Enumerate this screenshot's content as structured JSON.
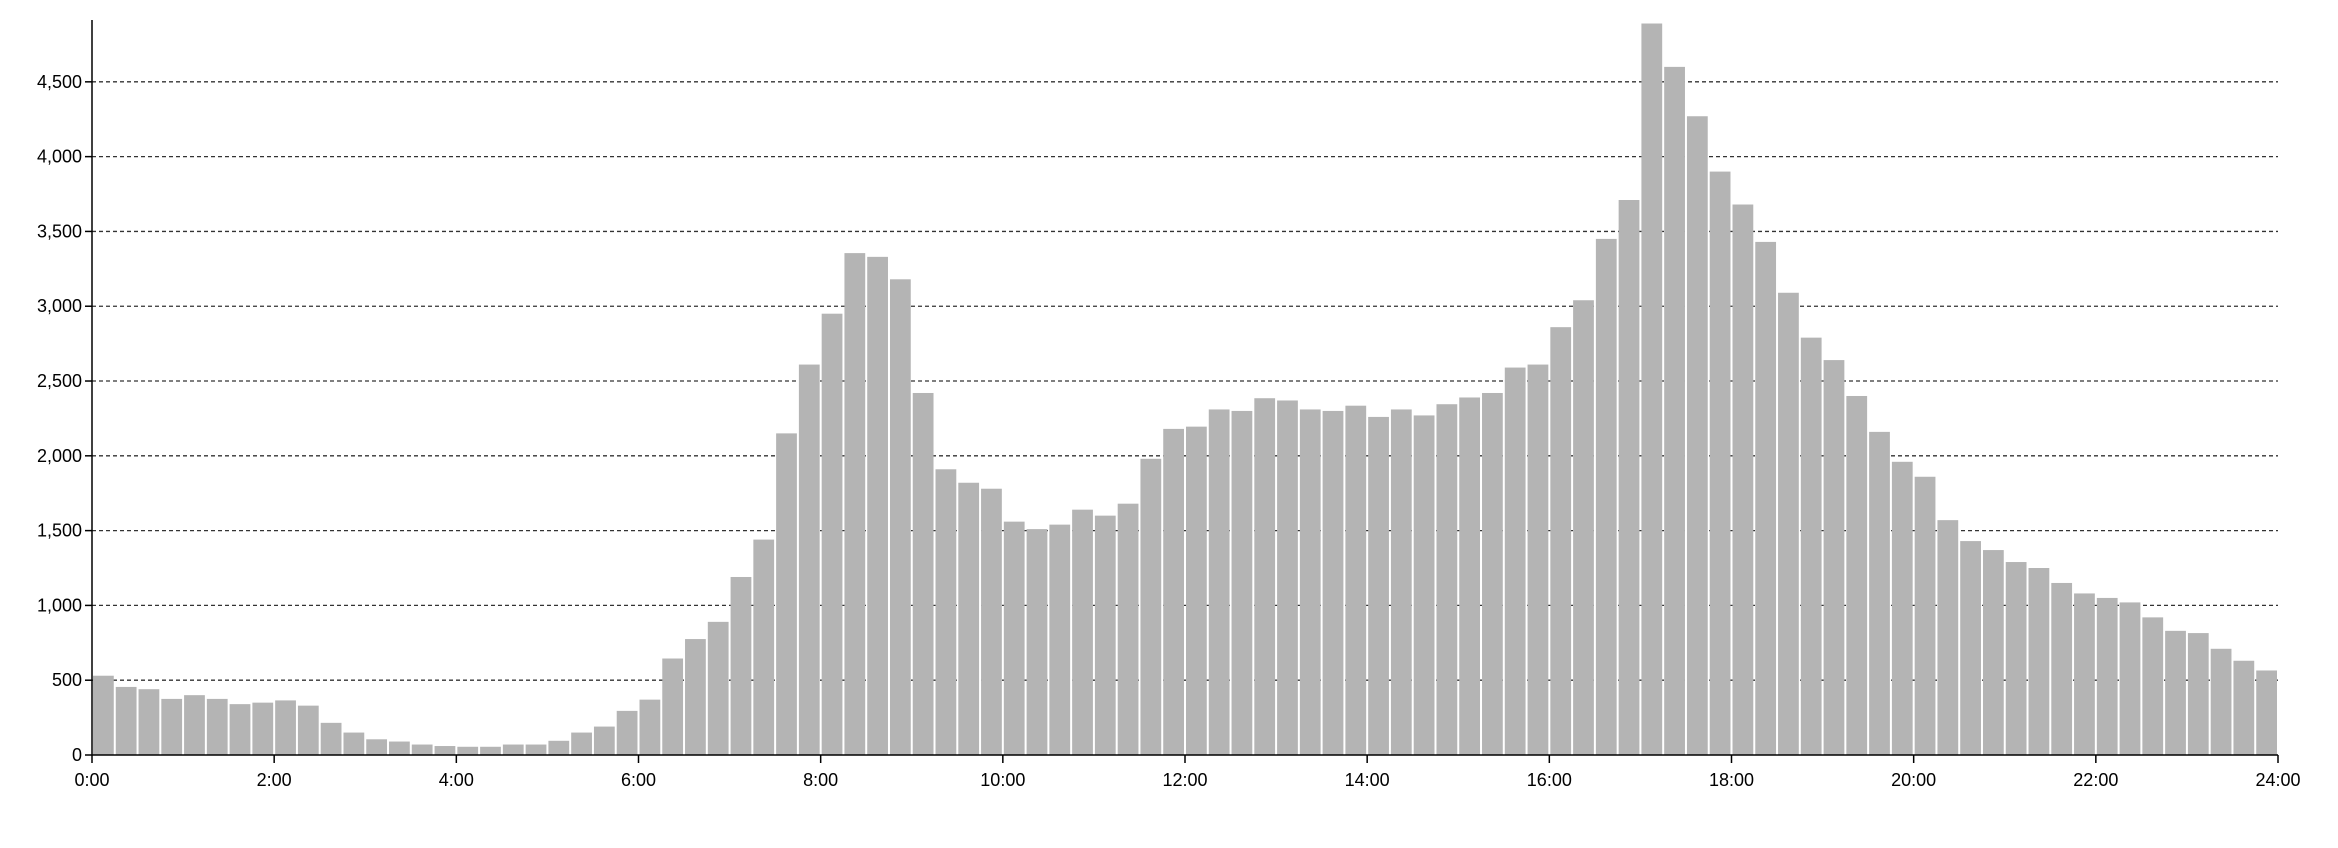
{
  "chart_data": {
    "type": "bar",
    "title": "",
    "xlabel": "",
    "ylabel": "",
    "bin_minutes": 15,
    "xlim_hours": [
      0,
      24
    ],
    "ylim": [
      0,
      4900
    ],
    "x_ticks": [
      "0:00",
      "2:00",
      "4:00",
      "6:00",
      "8:00",
      "10:00",
      "12:00",
      "14:00",
      "16:00",
      "18:00",
      "20:00",
      "22:00",
      "24:00"
    ],
    "y_ticks": [
      "0",
      "500",
      "1,000",
      "1,500",
      "2,000",
      "2,500",
      "3,000",
      "3,500",
      "4,000",
      "4,500"
    ],
    "grid": "horizontal dashed",
    "bar_color": "#b4b4b4",
    "values": [
      530,
      455,
      440,
      375,
      400,
      375,
      340,
      350,
      365,
      330,
      215,
      150,
      105,
      90,
      70,
      60,
      55,
      55,
      70,
      70,
      95,
      150,
      190,
      295,
      370,
      645,
      775,
      890,
      1190,
      1440,
      2150,
      2610,
      2950,
      3355,
      3330,
      3180,
      2420,
      1910,
      1820,
      1780,
      1560,
      1510,
      1540,
      1640,
      1600,
      1680,
      1980,
      2180,
      2195,
      2310,
      2300,
      2385,
      2370,
      2310,
      2300,
      2335,
      2260,
      2310,
      2270,
      2345,
      2390,
      2420,
      2590,
      2610,
      2860,
      3040,
      3450,
      3710,
      4890,
      4600,
      4270,
      3900,
      3680,
      3430,
      3090,
      2790,
      2640,
      2400,
      2160,
      1960,
      1860,
      1570,
      1430,
      1370,
      1290,
      1250,
      1150,
      1080,
      1050,
      1020,
      920,
      830,
      815,
      710,
      630,
      565
    ]
  }
}
